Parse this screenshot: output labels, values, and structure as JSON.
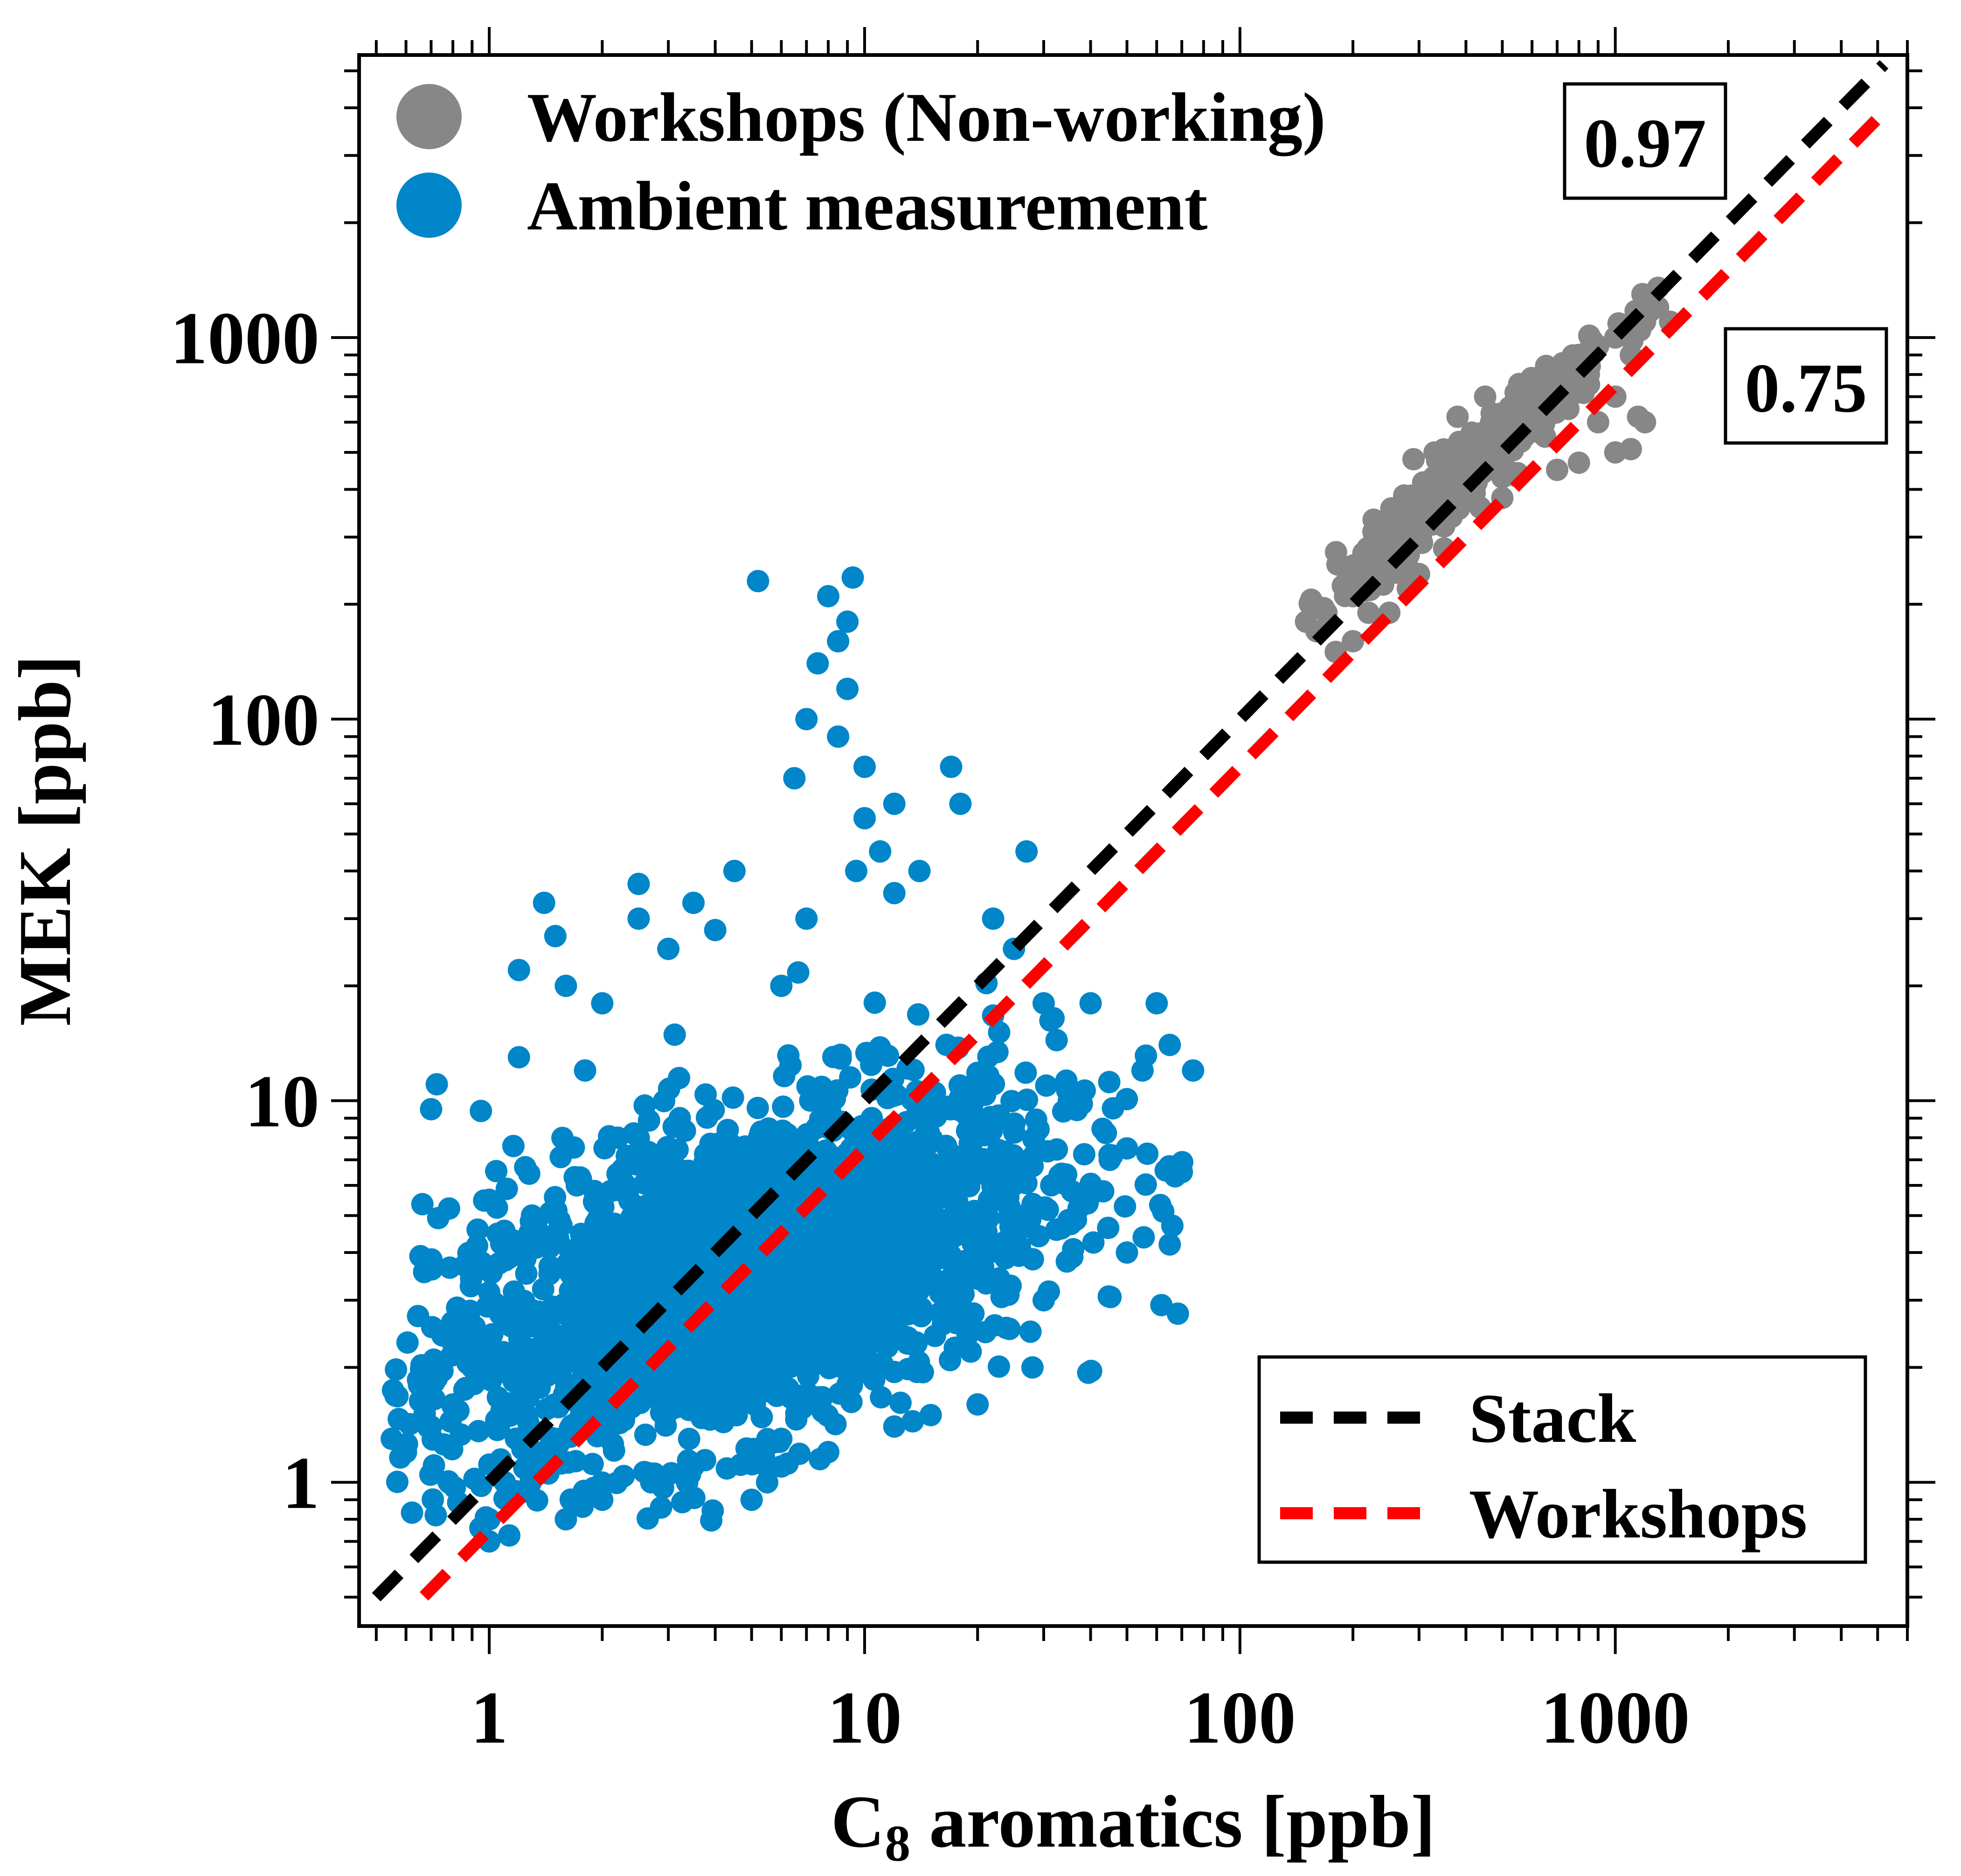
{
  "chart_data": {
    "type": "scatter",
    "x_scale": "log",
    "y_scale": "log",
    "xlim": [
      0.45,
      6000
    ],
    "ylim": [
      0.42,
      5500
    ],
    "xlabel_main": "C",
    "xlabel_sub": "8",
    "xlabel_rest": " aromatics  [ppb]",
    "ylabel": "MEK  [ppb]",
    "x_tick_labels": [
      {
        "value": 1,
        "text": "1"
      },
      {
        "value": 10,
        "text": "10"
      },
      {
        "value": 100,
        "text": "100"
      },
      {
        "value": 1000,
        "text": "1000"
      }
    ],
    "y_tick_labels": [
      {
        "value": 1,
        "text": "1"
      },
      {
        "value": 10,
        "text": "10"
      },
      {
        "value": 100,
        "text": "100"
      },
      {
        "value": 1000,
        "text": "1000"
      }
    ],
    "grid": false,
    "legend_points": {
      "placement": "top-left",
      "items": [
        {
          "label": "Workshops (Non-working)",
          "color": "#878787"
        },
        {
          "label": "Ambient measurement",
          "color": "#0086c9"
        }
      ]
    },
    "legend_lines": {
      "placement": "bottom-right",
      "items": [
        {
          "label": "Stack",
          "color": "#000000",
          "dash": "dashed"
        },
        {
          "label": "Workshops",
          "color": "#ff0000",
          "dash": "dashed"
        }
      ]
    },
    "series": [
      {
        "name": "Workshops (Non-working)",
        "color": "#878787",
        "center": [
          420,
          470
        ],
        "points": [
          [
            150,
            180
          ],
          [
            180,
            150
          ],
          [
            160,
            170
          ],
          [
            200,
            210
          ],
          [
            220,
            190
          ],
          [
            240,
            260
          ],
          [
            260,
            300
          ],
          [
            280,
            220
          ],
          [
            300,
            350
          ],
          [
            320,
            400
          ],
          [
            350,
            320
          ],
          [
            370,
            450
          ],
          [
            400,
            500
          ],
          [
            420,
            380
          ],
          [
            450,
            550
          ],
          [
            480,
            600
          ],
          [
            500,
            430
          ],
          [
            550,
            700
          ],
          [
            600,
            650
          ],
          [
            650,
            800
          ],
          [
            700,
            750
          ],
          [
            750,
            850
          ],
          [
            800,
            900
          ],
          [
            850,
            800
          ],
          [
            900,
            950
          ],
          [
            1000,
            1000
          ],
          [
            1100,
            1050
          ],
          [
            1200,
            1100
          ],
          [
            1300,
            1200
          ],
          [
            1400,
            1100
          ],
          [
            1300,
            1350
          ],
          [
            1100,
            900
          ],
          [
            1000,
            700
          ],
          [
            900,
            600
          ],
          [
            1000,
            500
          ],
          [
            1200,
            600
          ],
          [
            1150,
            620
          ],
          [
            500,
            380
          ],
          [
            280,
            250
          ],
          [
            250,
            190
          ],
          [
            300,
            240
          ],
          [
            350,
            280
          ],
          [
            200,
            160
          ],
          [
            170,
            190
          ],
          [
            330,
            500
          ],
          [
            290,
            480
          ],
          [
            380,
            620
          ],
          [
            450,
            700
          ],
          [
            550,
            600
          ],
          [
            650,
            550
          ],
          [
            750,
            650
          ],
          [
            800,
            470
          ],
          [
            1100,
            510
          ],
          [
            700,
            450
          ]
        ],
        "cloud": {
          "n": 380,
          "spread_x": 0.42,
          "spread_along": 0.9,
          "sd_y": 0.1
        }
      },
      {
        "name": "Ambient measurement",
        "color": "#0086c9",
        "center": [
          6,
          3.5
        ],
        "points": [
          [
            0.55,
            1.3
          ],
          [
            0.6,
            1.2
          ],
          [
            0.65,
            1.8
          ],
          [
            0.7,
            9.5
          ],
          [
            0.7,
            1.4
          ],
          [
            0.8,
            1.6
          ],
          [
            0.9,
            2.0
          ],
          [
            0.95,
            9.4
          ],
          [
            1.0,
            0.7
          ],
          [
            1.0,
            5.5
          ],
          [
            1.1,
            1.0
          ],
          [
            1.2,
            13
          ],
          [
            1.2,
            22
          ],
          [
            1.3,
            5.0
          ],
          [
            1.4,
            33
          ],
          [
            1.5,
            27
          ],
          [
            1.6,
            20
          ],
          [
            1.6,
            0.8
          ],
          [
            1.8,
            12
          ],
          [
            2.0,
            0.9
          ],
          [
            2.0,
            18
          ],
          [
            2.2,
            8
          ],
          [
            2.5,
            37
          ],
          [
            2.5,
            30
          ],
          [
            2.7,
            1.0
          ],
          [
            3.0,
            25
          ],
          [
            3.5,
            33
          ],
          [
            3.5,
            1.1
          ],
          [
            4,
            28
          ],
          [
            4.5,
            40
          ],
          [
            5,
            0.9
          ],
          [
            5.2,
            230
          ],
          [
            5.5,
            1.0
          ],
          [
            6,
            1.1
          ],
          [
            6.5,
            70
          ],
          [
            7,
            100
          ],
          [
            7.5,
            140
          ],
          [
            8,
            210
          ],
          [
            8.5,
            160
          ],
          [
            9,
            180
          ],
          [
            9.3,
            235
          ],
          [
            9,
            120
          ],
          [
            8.5,
            90
          ],
          [
            10,
            75
          ],
          [
            10,
            55
          ],
          [
            11,
            45
          ],
          [
            12,
            35
          ],
          [
            14,
            40
          ],
          [
            15,
            1.5
          ],
          [
            17,
            75
          ],
          [
            18,
            60
          ],
          [
            22,
            30
          ],
          [
            25,
            25
          ],
          [
            27,
            45
          ],
          [
            28,
            2.0
          ],
          [
            30,
            18
          ],
          [
            40,
            18
          ],
          [
            45,
            7
          ],
          [
            50,
            4.0
          ],
          [
            55,
            12
          ],
          [
            60,
            18
          ],
          [
            65,
            14
          ],
          [
            70,
            6.5
          ],
          [
            75,
            12
          ],
          [
            65,
            4.2
          ],
          [
            50,
            7.5
          ],
          [
            35,
            10
          ],
          [
            30,
            3.0
          ],
          [
            20,
            1.6
          ],
          [
            12,
            1.4
          ],
          [
            8,
            1.2
          ],
          [
            6,
            1.3
          ],
          [
            4,
            1.5
          ],
          [
            3,
            1.6
          ],
          [
            2,
            1.4
          ],
          [
            1.5,
            1.3
          ],
          [
            12,
            60
          ],
          [
            9.5,
            40
          ],
          [
            7,
            30
          ],
          [
            6,
            20
          ]
        ],
        "cloud": {
          "n": 2400,
          "lnx_mean": 1.55,
          "lnx_sd": 1.05,
          "lny_sd": 0.48,
          "slope": 0.3
        }
      }
    ],
    "fit_lines": [
      {
        "name": "Stack",
        "color": "#000000",
        "slope": 0.97,
        "x_range": [
          0.5,
          5200
        ],
        "label": "0.97"
      },
      {
        "name": "Workshops",
        "color": "#ff0000",
        "slope": 0.75,
        "x_range": [
          0.67,
          5200
        ],
        "label": "0.75"
      }
    ]
  }
}
